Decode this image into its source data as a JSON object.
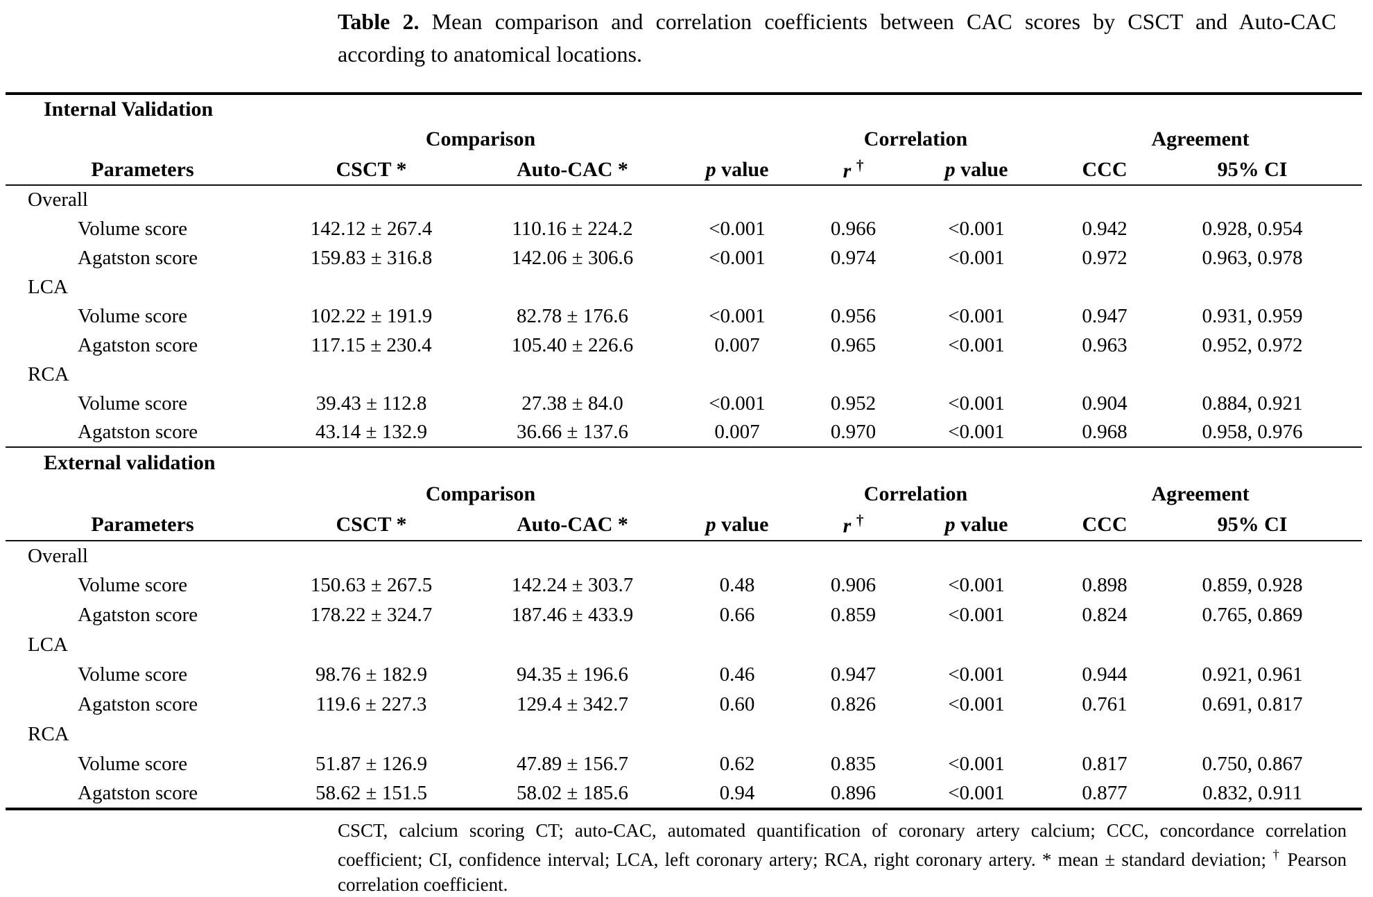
{
  "page": {
    "background": "#ffffff",
    "text_color": "#000000",
    "rule_color": "#000000"
  },
  "title": {
    "label": "Table 2.",
    "text": "Mean comparison and correlation coefficients between CAC scores by CSCT and Auto-CAC according to anatomical locations."
  },
  "table": {
    "group_headers": {
      "comparison": "Comparison",
      "correlation": "Correlation",
      "agreement": "Agreement"
    },
    "columns": [
      {
        "label": "Parameters"
      },
      {
        "label": "CSCT *"
      },
      {
        "label": "Auto-CAC *"
      },
      {
        "italic": "p",
        "label": "value"
      },
      {
        "italic": "r",
        "sup": "†"
      },
      {
        "italic": "p",
        "label": "value"
      },
      {
        "label": "CCC"
      },
      {
        "label": "95% CI"
      }
    ],
    "sections": [
      {
        "label": "Internal Validation",
        "groups": [
          {
            "label": "Overall",
            "rows": [
              {
                "parameter": "Volume score",
                "csct": "142.12 ± 267.4",
                "auto_cac": "110.16 ± 224.2",
                "p_value": "<0.001",
                "r": "0.966",
                "r_p_value": "<0.001",
                "ccc": "0.942",
                "ci_95": "0.928, 0.954"
              },
              {
                "parameter": "Agatston score",
                "csct": "159.83 ± 316.8",
                "auto_cac": "142.06 ± 306.6",
                "p_value": "<0.001",
                "r": "0.974",
                "r_p_value": "<0.001",
                "ccc": "0.972",
                "ci_95": "0.963, 0.978"
              }
            ]
          },
          {
            "label": "LCA",
            "rows": [
              {
                "parameter": "Volume score",
                "csct": "102.22 ± 191.9",
                "auto_cac": "82.78 ± 176.6",
                "p_value": "<0.001",
                "r": "0.956",
                "r_p_value": "<0.001",
                "ccc": "0.947",
                "ci_95": "0.931, 0.959"
              },
              {
                "parameter": "Agatston score",
                "csct": "117.15 ± 230.4",
                "auto_cac": "105.40 ± 226.6",
                "p_value": "0.007",
                "r": "0.965",
                "r_p_value": "<0.001",
                "ccc": "0.963",
                "ci_95": "0.952, 0.972"
              }
            ]
          },
          {
            "label": "RCA",
            "rows": [
              {
                "parameter": "Volume score",
                "csct": "39.43 ± 112.8",
                "auto_cac": "27.38 ± 84.0",
                "p_value": "<0.001",
                "r": "0.952",
                "r_p_value": "<0.001",
                "ccc": "0.904",
                "ci_95": "0.884, 0.921"
              },
              {
                "parameter": "Agatston score",
                "csct": "43.14 ± 132.9",
                "auto_cac": "36.66 ± 137.6",
                "p_value": "0.007",
                "r": "0.970",
                "r_p_value": "<0.001",
                "ccc": "0.968",
                "ci_95": "0.958, 0.976"
              }
            ]
          }
        ]
      },
      {
        "label": "External validation",
        "groups": [
          {
            "label": "Overall",
            "rows": [
              {
                "parameter": "Volume score",
                "csct": "150.63 ± 267.5",
                "auto_cac": "142.24 ± 303.7",
                "p_value": "0.48",
                "r": "0.906",
                "r_p_value": "<0.001",
                "ccc": "0.898",
                "ci_95": "0.859, 0.928"
              },
              {
                "parameter": "Agatston score",
                "csct": "178.22 ± 324.7",
                "auto_cac": "187.46 ± 433.9",
                "p_value": "0.66",
                "r": "0.859",
                "r_p_value": "<0.001",
                "ccc": "0.824",
                "ci_95": "0.765, 0.869"
              }
            ]
          },
          {
            "label": "LCA",
            "rows": [
              {
                "parameter": "Volume score",
                "csct": "98.76 ± 182.9",
                "auto_cac": "94.35 ± 196.6",
                "p_value": "0.46",
                "r": "0.947",
                "r_p_value": "<0.001",
                "ccc": "0.944",
                "ci_95": "0.921, 0.961"
              },
              {
                "parameter": "Agatston score",
                "csct": "119.6 ± 227.3",
                "auto_cac": "129.4 ± 342.7",
                "p_value": "0.60",
                "r": "0.826",
                "r_p_value": "<0.001",
                "ccc": "0.761",
                "ci_95": "0.691, 0.817"
              }
            ]
          },
          {
            "label": "RCA",
            "rows": [
              {
                "parameter": "Volume score",
                "csct": "51.87 ± 126.9",
                "auto_cac": "47.89 ± 156.7",
                "p_value": "0.62",
                "r": "0.835",
                "r_p_value": "<0.001",
                "ccc": "0.817",
                "ci_95": "0.750, 0.867"
              },
              {
                "parameter": "Agatston score",
                "csct": "58.62 ± 151.5",
                "auto_cac": "58.02 ± 185.6",
                "p_value": "0.94",
                "r": "0.896",
                "r_p_value": "<0.001",
                "ccc": "0.877",
                "ci_95": "0.832, 0.911"
              }
            ]
          }
        ]
      }
    ]
  },
  "footnote": {
    "part1": "CSCT, calcium scoring CT; auto-CAC, automated quantification of coronary artery calcium; CCC, concordance correlation coefficient; CI, confidence interval; LCA, left coronary artery; RCA, right coronary artery. * mean ± standard deviation; ",
    "dagger": "†",
    "part2": " Pearson correlation coefficient."
  }
}
